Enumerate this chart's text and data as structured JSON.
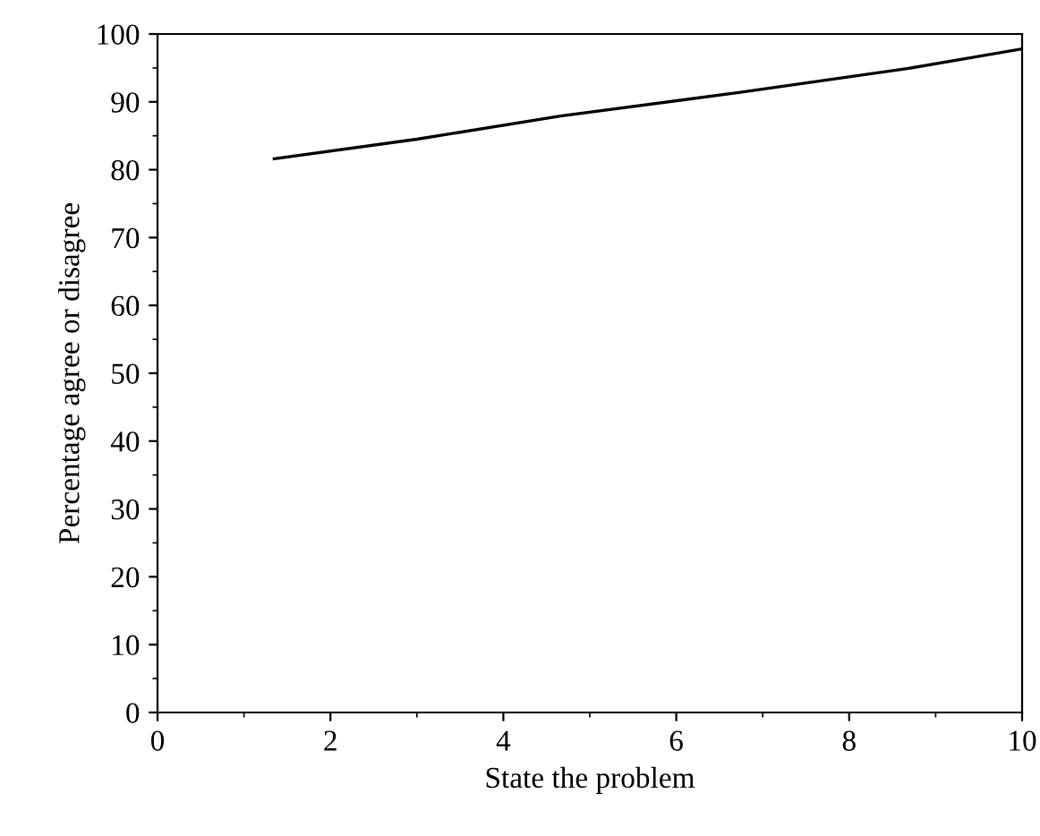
{
  "chart_data": {
    "type": "line",
    "xlabel": "State the problem",
    "ylabel": "Percentage agree or disagree",
    "x": [
      1.35,
      3.0,
      4.66,
      6.74,
      8.67,
      10.0
    ],
    "series": [
      {
        "color": "#000000",
        "values": [
          81.6,
          84.5,
          87.9,
          91.4,
          94.9,
          97.8
        ]
      }
    ],
    "xlim": [
      0,
      10
    ],
    "ylim": [
      0,
      100
    ],
    "xticks": [
      0,
      2,
      4,
      6,
      8,
      10
    ],
    "yticks": [
      0,
      10,
      20,
      30,
      40,
      50,
      60,
      70,
      80,
      90,
      100
    ],
    "grid": false,
    "legend": false,
    "marker": "none",
    "line_style": "solid"
  }
}
